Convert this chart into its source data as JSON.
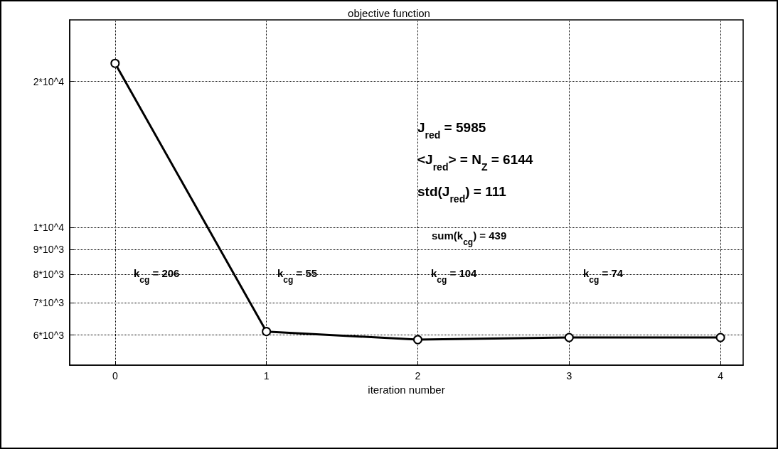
{
  "chart_data": {
    "type": "line",
    "title": "objective function",
    "xlabel": "iteration number",
    "x": [
      0,
      1,
      2,
      3,
      4
    ],
    "series": [
      {
        "color": "#000000",
        "values": [
          21800,
          6100,
          5870,
          5930,
          5930
        ]
      }
    ],
    "xlim": [
      -0.3,
      4.15
    ],
    "xticks": [
      0,
      1,
      2,
      3,
      4
    ],
    "ylim": [
      5200,
      26800
    ],
    "yticks": [
      {
        "value": 6000,
        "label": "6*10^3"
      },
      {
        "value": 7000,
        "label": "7*10^3"
      },
      {
        "value": 8000,
        "label": "8*10^3"
      },
      {
        "value": 9000,
        "label": "9*10^3"
      },
      {
        "value": 10000,
        "label": "1*10^4"
      },
      {
        "value": 20000,
        "label": "2*10^4"
      }
    ],
    "log": "y",
    "grid": true,
    "marker": "circle",
    "line_style": "solid",
    "annotations": [
      "J$_{red}$ = 5985",
      "<J$_{red}$> = N$_{Z}$ = 6144",
      "std(J$_{red}$) = 111",
      "sum(k$_{cg}$) = 439",
      "k$_{cg}$ = 206",
      "k$_{cg}$ = 55",
      "k$_{cg}$ = 104",
      "k$_{cg}$ = 74"
    ]
  }
}
